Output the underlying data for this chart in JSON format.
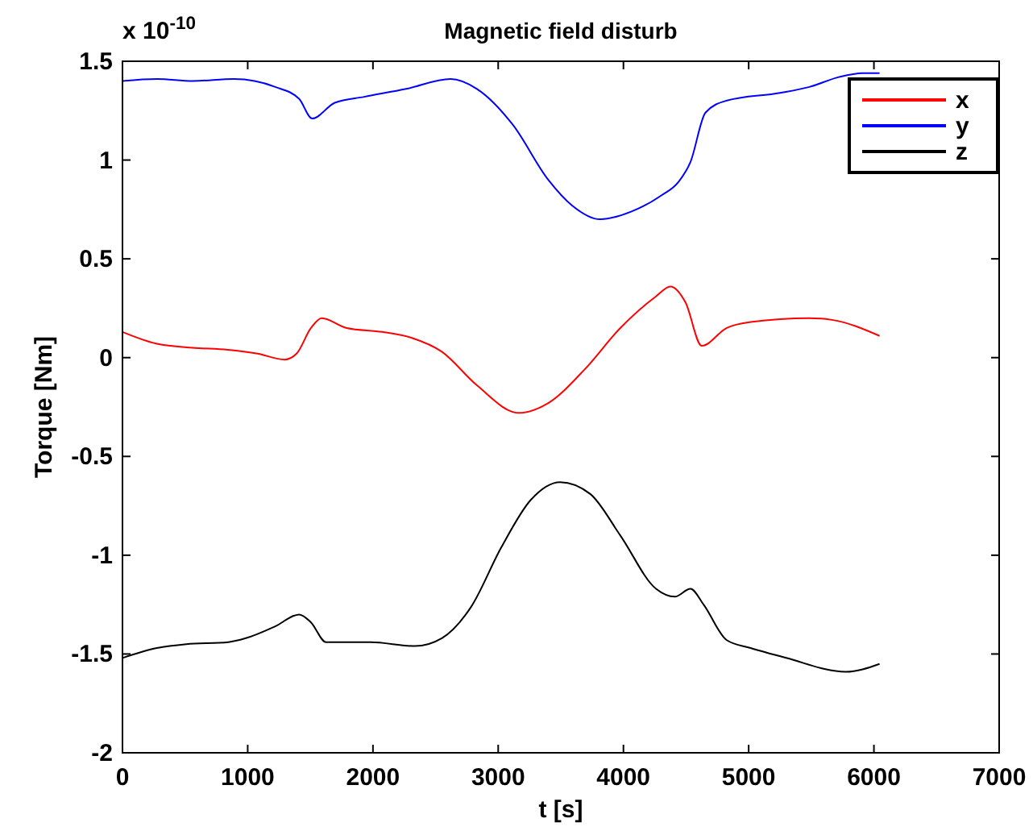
{
  "chart_data": {
    "type": "line",
    "title": "Magnetic field disturb",
    "xlabel": "t [s]",
    "ylabel": "Torque [Nm]",
    "annotations": [
      "x 10$^{-10}$"
    ],
    "xlim": [
      0,
      7000
    ],
    "xticks": [
      0,
      1000,
      2000,
      3000,
      4000,
      5000,
      6000,
      7000
    ],
    "ylim": [
      -2,
      1.5
    ],
    "yticks": [
      -2,
      -1.5,
      -1,
      -0.5,
      0,
      0.5,
      1,
      1.5
    ],
    "legend": "top right",
    "grid": false,
    "marker": "none",
    "line_style": "solid",
    "series": [
      {
        "name": "x",
        "color": "#ff0000",
        "x": [
          0,
          275,
          560,
          840,
          1080,
          1295,
          1390,
          1505,
          1590,
          1790,
          2075,
          2310,
          2550,
          2830,
          3165,
          3400,
          3690,
          3975,
          4260,
          4375,
          4495,
          4625,
          4825,
          5015,
          5485,
          5675,
          6045
        ],
        "values": [
          0.13,
          0.07,
          0.05,
          0.04,
          0.02,
          -0.01,
          0.02,
          0.15,
          0.2,
          0.15,
          0.13,
          0.1,
          0.03,
          -0.14,
          -0.28,
          -0.23,
          -0.06,
          0.15,
          0.31,
          0.36,
          0.28,
          0.06,
          0.15,
          0.18,
          0.2,
          0.19,
          0.11
        ]
      },
      {
        "name": "y",
        "color": "#0000ff",
        "x": [
          0,
          275,
          560,
          890,
          1220,
          1410,
          1515,
          1695,
          1930,
          2265,
          2620,
          2830,
          3115,
          3400,
          3590,
          3815,
          4065,
          4300,
          4440,
          4535,
          4655,
          4820,
          5250,
          5485,
          5720,
          5910,
          6045
        ],
        "values": [
          1.4,
          1.41,
          1.4,
          1.41,
          1.37,
          1.31,
          1.21,
          1.29,
          1.32,
          1.36,
          1.41,
          1.36,
          1.18,
          0.9,
          0.77,
          0.7,
          0.74,
          0.82,
          0.89,
          0.99,
          1.24,
          1.3,
          1.34,
          1.37,
          1.42,
          1.44,
          1.44
        ]
      },
      {
        "name": "z",
        "color": "#000000",
        "x": [
          0,
          275,
          510,
          845,
          985,
          1220,
          1410,
          1505,
          1625,
          1980,
          2335,
          2550,
          2785,
          3025,
          3260,
          3495,
          3735,
          3975,
          4260,
          4410,
          4535,
          4640,
          4825,
          5015,
          5300,
          5775,
          6045
        ],
        "values": [
          -1.52,
          -1.47,
          -1.45,
          -1.44,
          -1.42,
          -1.36,
          -1.3,
          -1.34,
          -1.44,
          -1.44,
          -1.46,
          -1.42,
          -1.26,
          -0.96,
          -0.72,
          -0.63,
          -0.69,
          -0.9,
          -1.17,
          -1.21,
          -1.17,
          -1.25,
          -1.43,
          -1.47,
          -1.52,
          -1.59,
          -1.55
        ]
      }
    ]
  }
}
